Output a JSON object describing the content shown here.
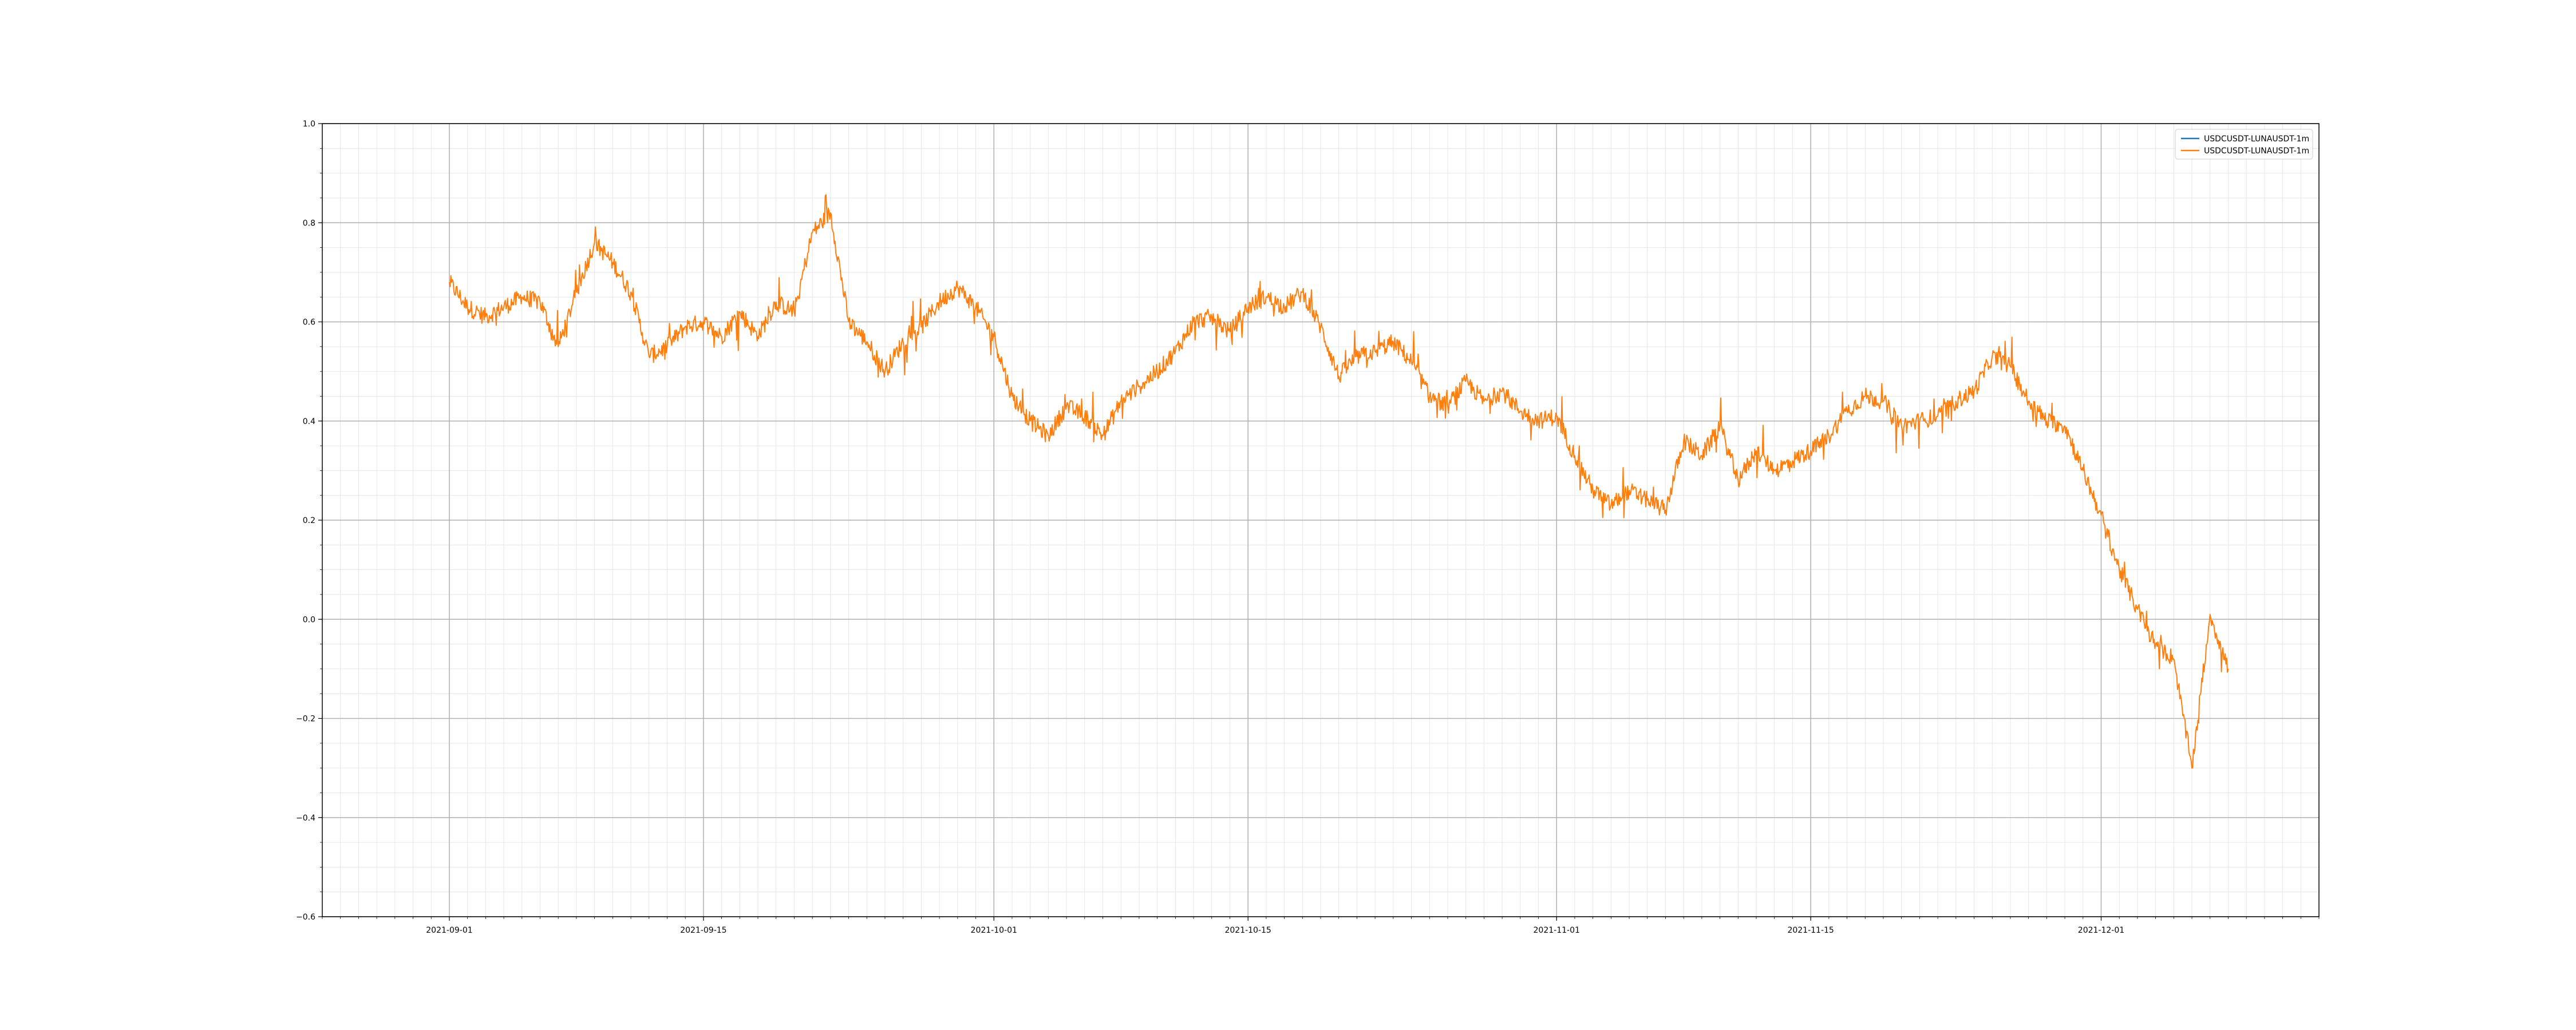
{
  "chart_data": {
    "type": "line",
    "title": "",
    "xlabel": "",
    "ylabel": "",
    "x_range": [
      "2021-08-25",
      "2021-12-13"
    ],
    "ylim": [
      -0.6,
      1.0
    ],
    "grid": true,
    "legend_position": "top-right",
    "x_ticks": [
      "2021-09-01",
      "2021-09-15",
      "2021-10-01",
      "2021-10-15",
      "2021-11-01",
      "2021-11-15",
      "2021-12-01"
    ],
    "y_ticks": [
      -0.6,
      -0.4,
      -0.2,
      0.0,
      0.2,
      0.4,
      0.6,
      0.8,
      1.0
    ],
    "series": [
      {
        "name": "USDCUSDT-LUNAUSDT-1m",
        "color": "#1f77b4",
        "x": [],
        "y": []
      },
      {
        "name": "USDCUSDT-LUNAUSDT-1m",
        "color": "#ff7f0e",
        "x": [
          "2021-09-01",
          "2021-09-02",
          "2021-09-03",
          "2021-09-04",
          "2021-09-05",
          "2021-09-06",
          "2021-09-07",
          "2021-09-08",
          "2021-09-09",
          "2021-09-10",
          "2021-09-11",
          "2021-09-12",
          "2021-09-13",
          "2021-09-14",
          "2021-09-15",
          "2021-09-16",
          "2021-09-17",
          "2021-09-18",
          "2021-09-19",
          "2021-09-20",
          "2021-09-21",
          "2021-09-22",
          "2021-09-23",
          "2021-09-24",
          "2021-09-25",
          "2021-09-26",
          "2021-09-27",
          "2021-09-28",
          "2021-09-29",
          "2021-09-30",
          "2021-10-01",
          "2021-10-02",
          "2021-10-03",
          "2021-10-04",
          "2021-10-05",
          "2021-10-06",
          "2021-10-07",
          "2021-10-08",
          "2021-10-09",
          "2021-10-10",
          "2021-10-11",
          "2021-10-12",
          "2021-10-13",
          "2021-10-14",
          "2021-10-15",
          "2021-10-16",
          "2021-10-17",
          "2021-10-18",
          "2021-10-19",
          "2021-10-20",
          "2021-10-21",
          "2021-10-22",
          "2021-10-23",
          "2021-10-24",
          "2021-10-25",
          "2021-10-26",
          "2021-10-27",
          "2021-10-28",
          "2021-10-29",
          "2021-10-30",
          "2021-10-31",
          "2021-11-01",
          "2021-11-02",
          "2021-11-03",
          "2021-11-04",
          "2021-11-05",
          "2021-11-06",
          "2021-11-07",
          "2021-11-08",
          "2021-11-09",
          "2021-11-10",
          "2021-11-11",
          "2021-11-12",
          "2021-11-13",
          "2021-11-14",
          "2021-11-15",
          "2021-11-16",
          "2021-11-17",
          "2021-11-18",
          "2021-11-19",
          "2021-11-20",
          "2021-11-21",
          "2021-11-22",
          "2021-11-23",
          "2021-11-24",
          "2021-11-25",
          "2021-11-26",
          "2021-11-27",
          "2021-11-28",
          "2021-11-29",
          "2021-11-30",
          "2021-12-01",
          "2021-12-02",
          "2021-12-03",
          "2021-12-04",
          "2021-12-05",
          "2021-12-06",
          "2021-12-07",
          "2021-12-08"
        ],
        "y": [
          0.68,
          0.63,
          0.61,
          0.63,
          0.65,
          0.64,
          0.55,
          0.66,
          0.76,
          0.72,
          0.66,
          0.53,
          0.55,
          0.59,
          0.6,
          0.57,
          0.62,
          0.57,
          0.64,
          0.62,
          0.78,
          0.82,
          0.6,
          0.56,
          0.5,
          0.56,
          0.59,
          0.64,
          0.67,
          0.63,
          0.57,
          0.45,
          0.4,
          0.37,
          0.43,
          0.41,
          0.37,
          0.44,
          0.47,
          0.5,
          0.54,
          0.6,
          0.61,
          0.58,
          0.63,
          0.65,
          0.63,
          0.66,
          0.59,
          0.49,
          0.53,
          0.54,
          0.56,
          0.52,
          0.45,
          0.43,
          0.48,
          0.44,
          0.46,
          0.42,
          0.4,
          0.41,
          0.33,
          0.26,
          0.23,
          0.26,
          0.24,
          0.22,
          0.36,
          0.33,
          0.39,
          0.28,
          0.34,
          0.3,
          0.32,
          0.34,
          0.37,
          0.42,
          0.45,
          0.44,
          0.39,
          0.4,
          0.41,
          0.44,
          0.46,
          0.53,
          0.51,
          0.44,
          0.4,
          0.39,
          0.3,
          0.21,
          0.1,
          0.02,
          -0.05,
          -0.08,
          -0.3,
          0.01,
          -0.1
        ]
      }
    ]
  }
}
